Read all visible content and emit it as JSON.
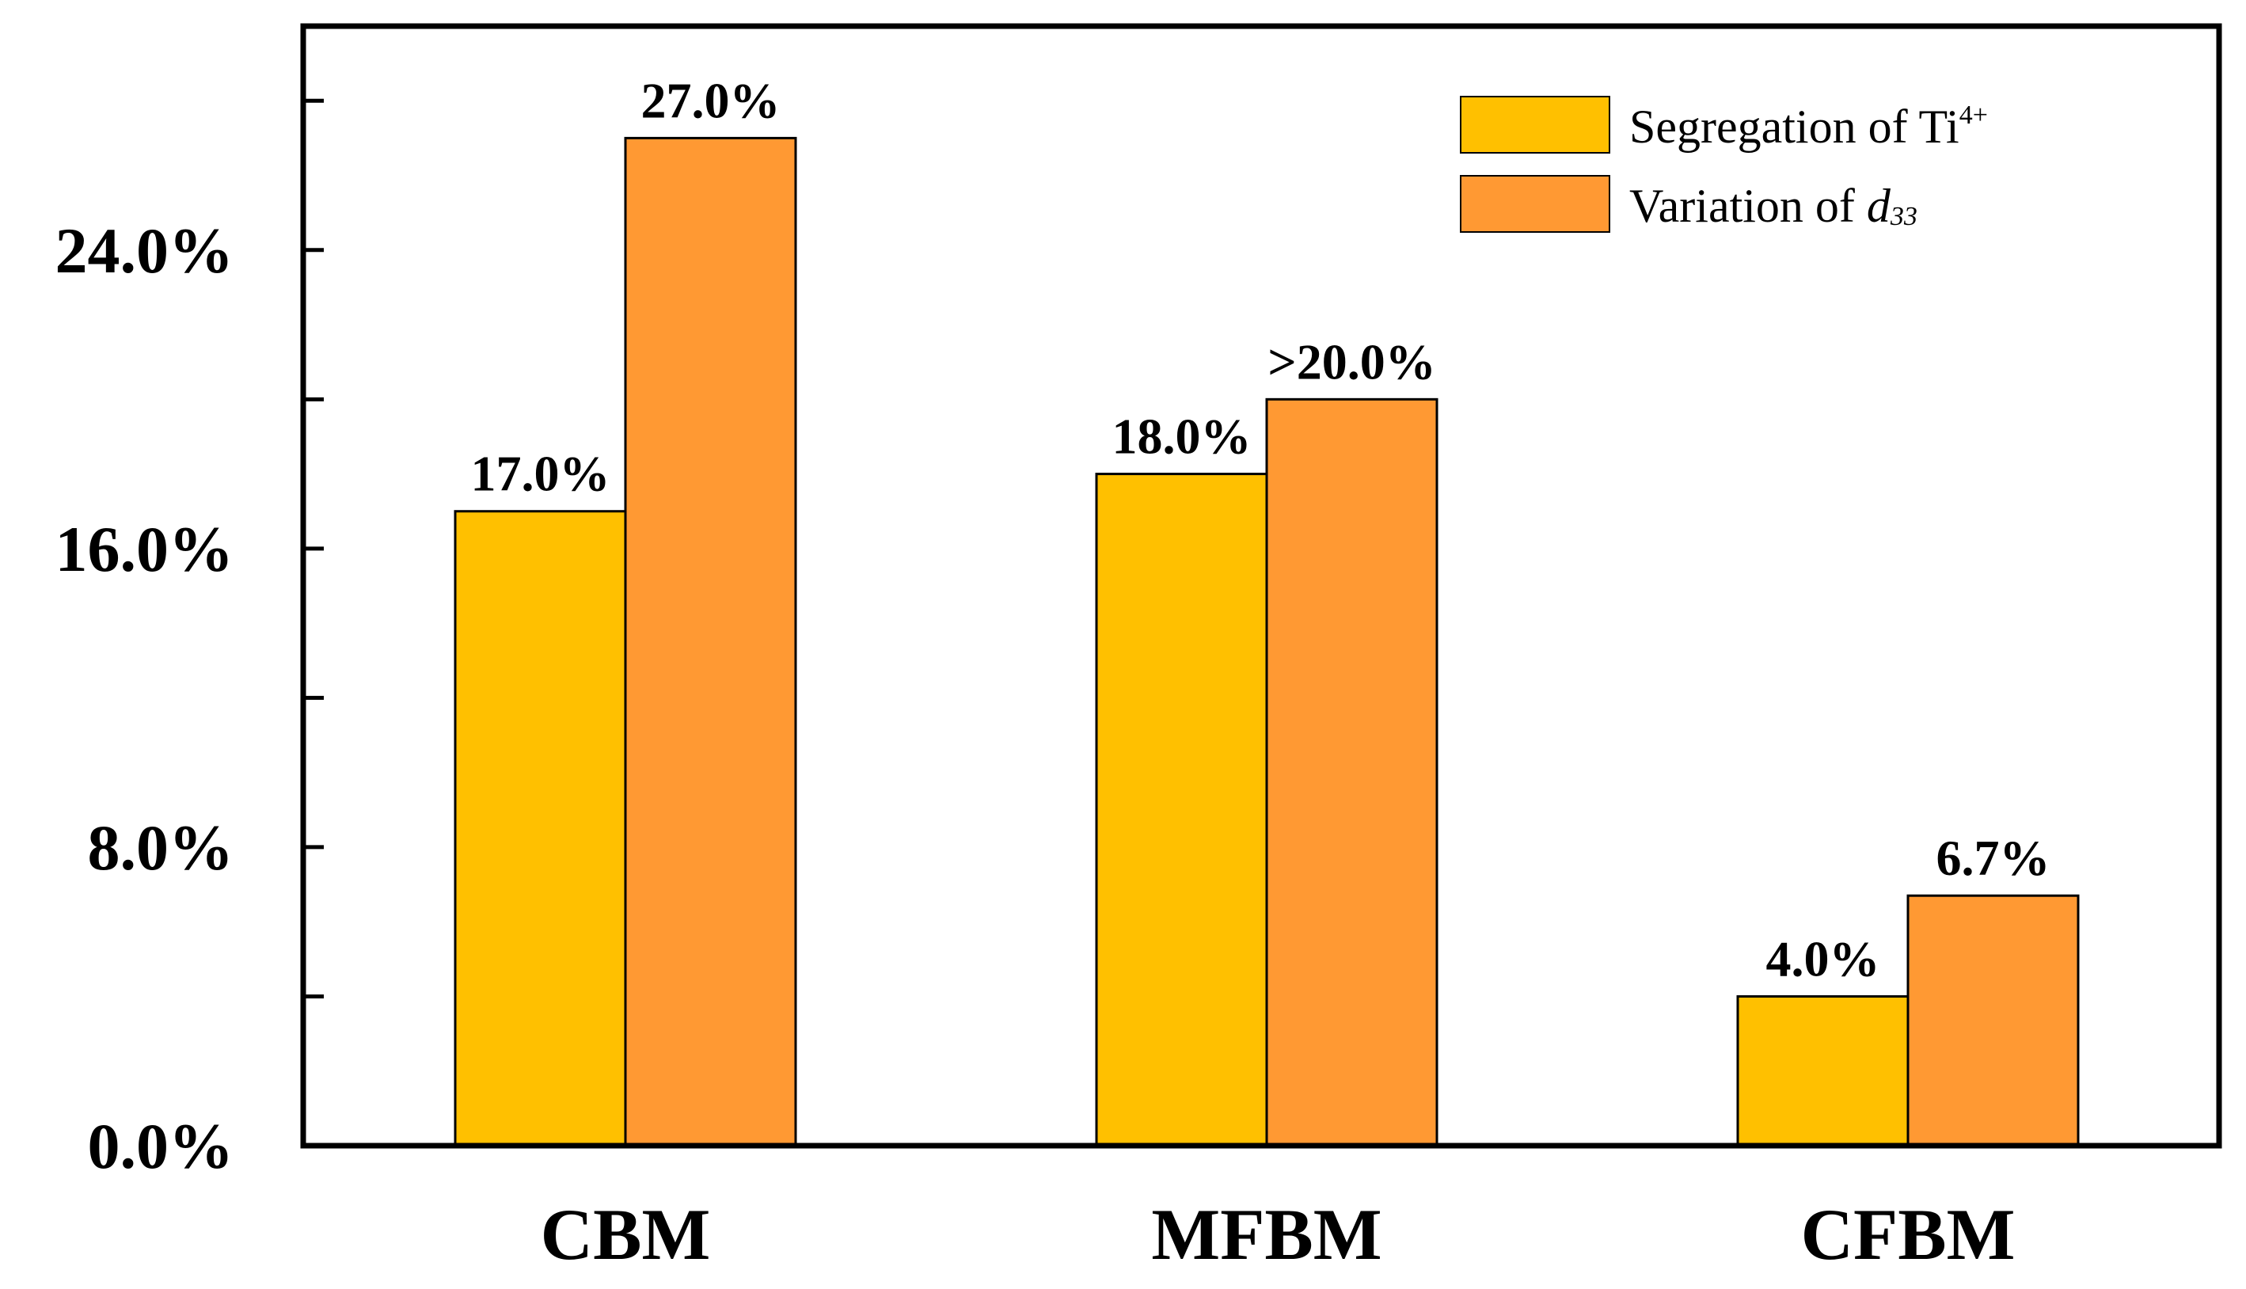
{
  "chart_data": {
    "type": "bar",
    "title": "",
    "xlabel": "",
    "ylabel": "",
    "ylim": [
      0,
      30
    ],
    "yticks": [
      0,
      8,
      16,
      24
    ],
    "ytick_labels": [
      "0.0%",
      "8.0%",
      "16.0%",
      "24.0%"
    ],
    "minor_yticks": [
      4,
      12,
      20,
      28
    ],
    "categories": [
      "CBM",
      "MFBM",
      "CFBM"
    ],
    "series": [
      {
        "name": "Segregation of Ti4+",
        "legend_text": "Segregation of Ti",
        "legend_superscript": "4+",
        "color": "#FFC000",
        "values": [
          17.0,
          18.0,
          4.0
        ],
        "labels": [
          "17.0%",
          "18.0%",
          "4.0%"
        ]
      },
      {
        "name": "Variation of d33",
        "legend_text": "Variation of ",
        "legend_italic": "d",
        "legend_subscript": "33",
        "color": "#FF9933",
        "values": [
          27.0,
          20.0,
          6.7
        ],
        "labels": [
          "27.0%",
          ">20.0%",
          "6.7%"
        ]
      }
    ],
    "legend_position": "top-right",
    "grid": false
  }
}
